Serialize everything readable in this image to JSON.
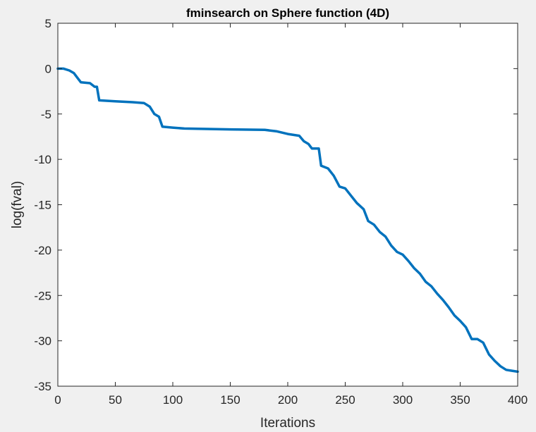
{
  "colors": {
    "figure_background": "#f0f0f0",
    "axes_background": "#ffffff",
    "axis_color": "#262626",
    "line_color": "#0072bd"
  },
  "chart_data": {
    "type": "line",
    "title": "fminsearch on Sphere function (4D)",
    "xlabel": "Iterations",
    "ylabel": "log(fval)",
    "xlim": [
      0,
      400
    ],
    "ylim": [
      -35,
      5
    ],
    "xticks": [
      0,
      50,
      100,
      150,
      200,
      250,
      300,
      350,
      400
    ],
    "yticks": [
      5,
      0,
      -5,
      -10,
      -15,
      -20,
      -25,
      -30,
      -35
    ],
    "grid": false,
    "legend": "none",
    "series": [
      {
        "color": "#0072bd",
        "points": [
          [
            0,
            0.0
          ],
          [
            5,
            0.0
          ],
          [
            10,
            -0.2
          ],
          [
            14,
            -0.5
          ],
          [
            17,
            -1.0
          ],
          [
            20,
            -1.5
          ],
          [
            28,
            -1.6
          ],
          [
            32,
            -2.0
          ],
          [
            34,
            -2.0
          ],
          [
            36,
            -3.5
          ],
          [
            50,
            -3.6
          ],
          [
            65,
            -3.7
          ],
          [
            75,
            -3.8
          ],
          [
            80,
            -4.2
          ],
          [
            84,
            -5.0
          ],
          [
            88,
            -5.3
          ],
          [
            91,
            -6.4
          ],
          [
            100,
            -6.5
          ],
          [
            110,
            -6.6
          ],
          [
            150,
            -6.7
          ],
          [
            180,
            -6.75
          ],
          [
            190,
            -6.9
          ],
          [
            200,
            -7.2
          ],
          [
            210,
            -7.4
          ],
          [
            214,
            -8.0
          ],
          [
            218,
            -8.3
          ],
          [
            221,
            -8.8
          ],
          [
            227,
            -8.8
          ],
          [
            229,
            -10.7
          ],
          [
            235,
            -11.0
          ],
          [
            240,
            -11.8
          ],
          [
            245,
            -13.0
          ],
          [
            250,
            -13.2
          ],
          [
            255,
            -14.0
          ],
          [
            260,
            -14.8
          ],
          [
            266,
            -15.5
          ],
          [
            270,
            -16.8
          ],
          [
            275,
            -17.2
          ],
          [
            280,
            -18.0
          ],
          [
            285,
            -18.5
          ],
          [
            290,
            -19.5
          ],
          [
            295,
            -20.2
          ],
          [
            300,
            -20.5
          ],
          [
            305,
            -21.2
          ],
          [
            310,
            -22.0
          ],
          [
            315,
            -22.6
          ],
          [
            320,
            -23.5
          ],
          [
            325,
            -24.0
          ],
          [
            330,
            -24.8
          ],
          [
            335,
            -25.5
          ],
          [
            340,
            -26.3
          ],
          [
            345,
            -27.2
          ],
          [
            350,
            -27.8
          ],
          [
            355,
            -28.5
          ],
          [
            360,
            -29.8
          ],
          [
            365,
            -29.8
          ],
          [
            370,
            -30.2
          ],
          [
            375,
            -31.5
          ],
          [
            380,
            -32.2
          ],
          [
            385,
            -32.8
          ],
          [
            390,
            -33.2
          ],
          [
            395,
            -33.3
          ],
          [
            400,
            -33.4
          ]
        ]
      }
    ]
  }
}
